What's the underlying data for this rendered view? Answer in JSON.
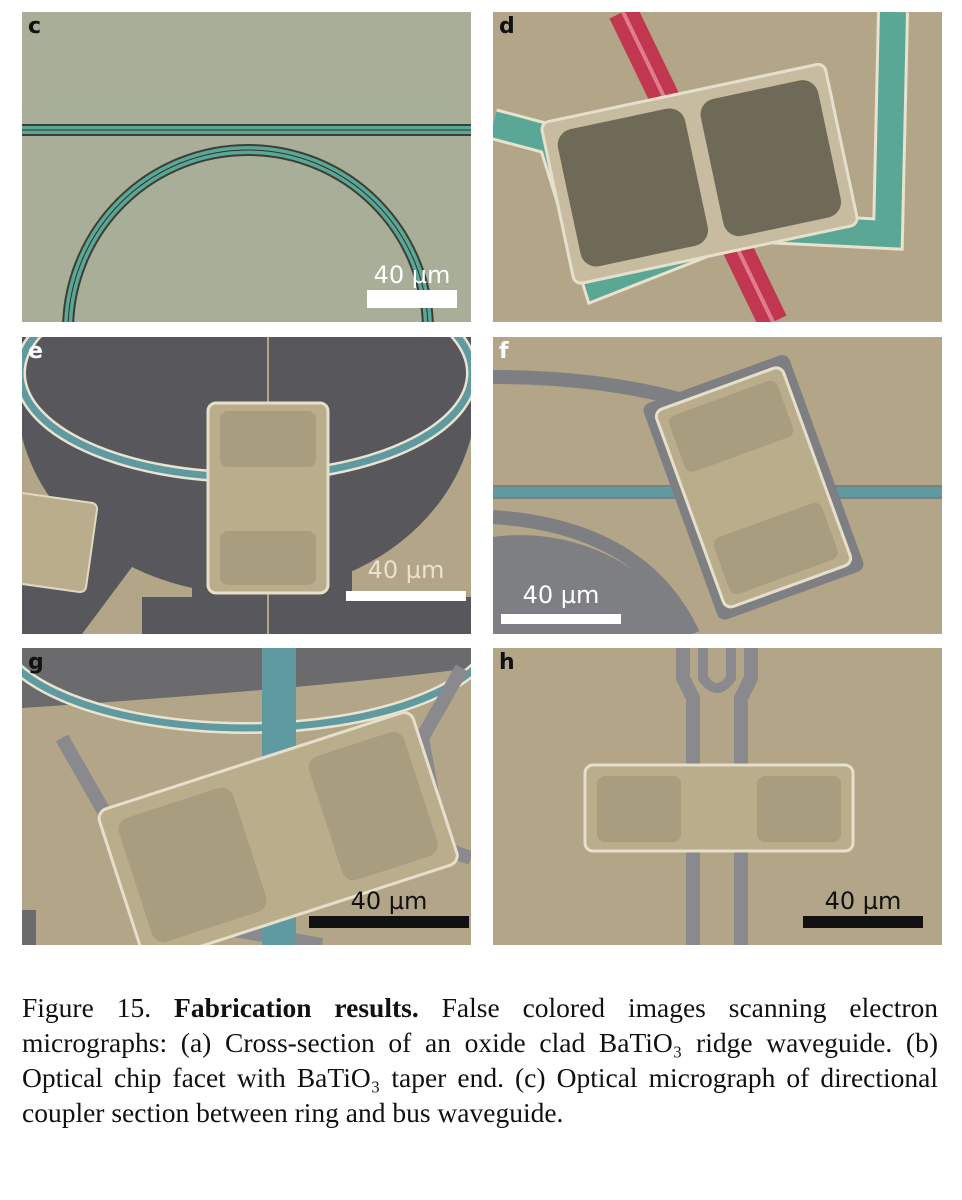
{
  "panels": [
    {
      "id": "c",
      "label": "c",
      "scale_text": "40 µm"
    },
    {
      "id": "d",
      "label": "d",
      "scale_text": ""
    },
    {
      "id": "e",
      "label": "e",
      "scale_text": "40 µm"
    },
    {
      "id": "f",
      "label": "f",
      "scale_text": "40 µm"
    },
    {
      "id": "g",
      "label": "g",
      "scale_text": "40 µm"
    },
    {
      "id": "h",
      "label": "h",
      "scale_text": "40 µm"
    }
  ],
  "caption": {
    "figure_number": "Figure 15.",
    "bold_title": "Fabrication results.",
    "text": "False colored images scanning electron micrographs: (a) Cross-section of an oxide clad BaTiO₃ ridge waveguide. (b) Optical chip facet with BaTiO₃ taper end. (c) Optical micrograph of directional coupler section between ring and bus waveguide."
  },
  "colors": {
    "substrate_green": "#a8ae97",
    "substrate_tan": "#b3a588",
    "waveguide_teal": "#5aa796",
    "waveguide_blue": "#5f9aa0",
    "electrode_red": "#c0374f",
    "metal_gray": "#5e5e62",
    "pad_khaki": "#b9ad8c"
  }
}
